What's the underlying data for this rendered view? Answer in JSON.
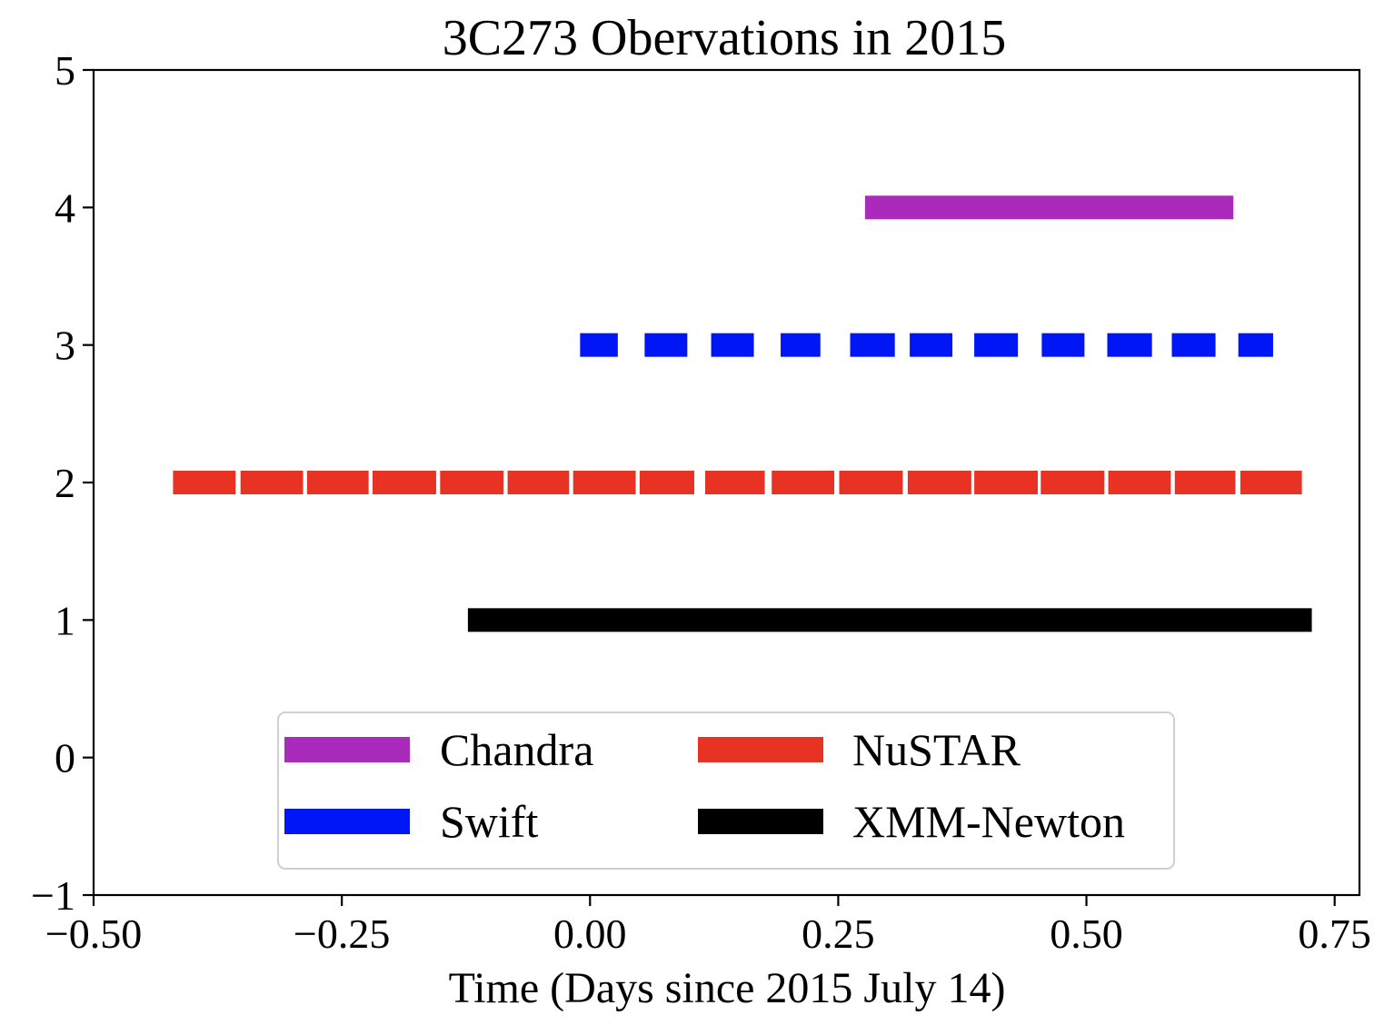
{
  "chart_data": {
    "type": "bar",
    "title": "3C273 Obervations in 2015",
    "xlabel": "Time (Days since 2015 July 14)",
    "ylabel": "",
    "xlim": [
      -0.5,
      0.775
    ],
    "ylim": [
      -1,
      5
    ],
    "xticks": [
      -0.5,
      -0.25,
      0.0,
      0.25,
      0.5,
      0.75
    ],
    "xtick_labels": [
      "−0.50",
      "−0.25",
      "0.00",
      "0.25",
      "0.50",
      "0.75"
    ],
    "yticks": [
      -1,
      0,
      1,
      2,
      3,
      4,
      5
    ],
    "ytick_labels": [
      "−1",
      "0",
      "1",
      "2",
      "3",
      "4",
      "5"
    ],
    "grid": false,
    "legend": {
      "placement": "lower-center",
      "columns": 2
    },
    "series": [
      {
        "name": "Chandra",
        "color": "#AA2ABB",
        "y": 4,
        "intervals": [
          [
            0.277,
            0.648
          ]
        ]
      },
      {
        "name": "Swift",
        "color": "#0016F5",
        "y": 3,
        "intervals": [
          [
            -0.01,
            0.028
          ],
          [
            0.055,
            0.098
          ],
          [
            0.122,
            0.165
          ],
          [
            0.192,
            0.232
          ],
          [
            0.262,
            0.307
          ],
          [
            0.322,
            0.365
          ],
          [
            0.387,
            0.431
          ],
          [
            0.455,
            0.498
          ],
          [
            0.521,
            0.566
          ],
          [
            0.586,
            0.63
          ],
          [
            0.653,
            0.688
          ]
        ]
      },
      {
        "name": "NuSTAR",
        "color": "#E83224",
        "y": 2,
        "intervals": [
          [
            -0.42,
            -0.357
          ],
          [
            -0.352,
            -0.289
          ],
          [
            -0.285,
            -0.223
          ],
          [
            -0.219,
            -0.155
          ],
          [
            -0.151,
            -0.087
          ],
          [
            -0.083,
            -0.021
          ],
          [
            -0.017,
            0.046
          ],
          [
            0.05,
            0.105
          ],
          [
            0.116,
            0.176
          ],
          [
            0.183,
            0.246
          ],
          [
            0.251,
            0.315
          ],
          [
            0.32,
            0.384
          ],
          [
            0.387,
            0.451
          ],
          [
            0.454,
            0.518
          ],
          [
            0.522,
            0.585
          ],
          [
            0.589,
            0.65
          ],
          [
            0.655,
            0.717
          ]
        ]
      },
      {
        "name": "XMM-Newton",
        "color": "#000000",
        "y": 1,
        "intervals": [
          [
            -0.123,
            0.727
          ]
        ]
      }
    ]
  }
}
